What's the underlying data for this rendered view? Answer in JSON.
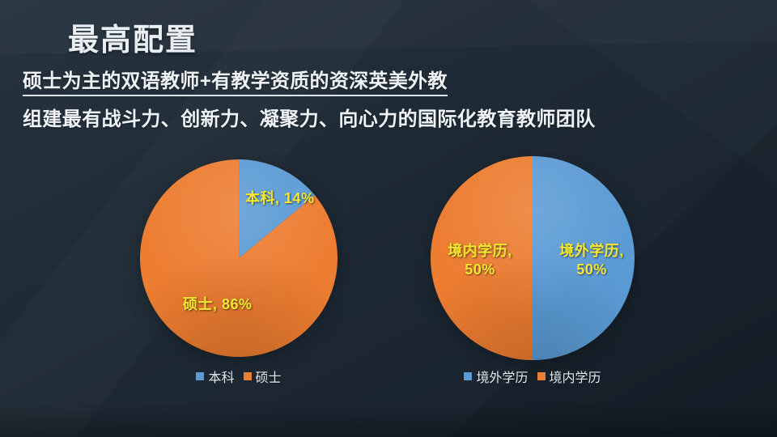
{
  "slide": {
    "title": "最高配置",
    "subtitle_underlined": "硕士为主的双语教师+有教学资质的资深英美外教",
    "subtitle": "组建最有战斗力、创新力、凝聚力、向心力的国际化教育教师团队"
  },
  "colors": {
    "background": "#1E2A35",
    "title_text": "#E9EEF2",
    "body_text": "#F0F4F7",
    "label_yellow": "#F5E82E",
    "legend_text": "#E4EAEE",
    "pie_blue": "#5B9BD5",
    "pie_orange": "#ED7D31"
  },
  "chart_data": [
    {
      "type": "pie",
      "title": "",
      "start_angle_deg": 0,
      "direction": "clockwise",
      "legend_position": "bottom",
      "segments": [
        {
          "label": "本科",
          "value": 14,
          "color": "#5B9BD5",
          "display": "本科, 14%"
        },
        {
          "label": "硕士",
          "value": 86,
          "color": "#ED7D31",
          "display": "硕士, 86%"
        }
      ],
      "legend": [
        "本科",
        "硕士"
      ]
    },
    {
      "type": "pie",
      "title": "",
      "start_angle_deg": 0,
      "direction": "clockwise",
      "legend_position": "bottom",
      "segments": [
        {
          "label": "境外学历",
          "value": 50,
          "color": "#5B9BD5",
          "display_line1": "境外学历,",
          "display_line2": "50%"
        },
        {
          "label": "境内学历",
          "value": 50,
          "color": "#ED7D31",
          "display_line1": "境内学历,",
          "display_line2": "50%"
        }
      ],
      "legend": [
        "境外学历",
        "境内学历"
      ]
    }
  ]
}
